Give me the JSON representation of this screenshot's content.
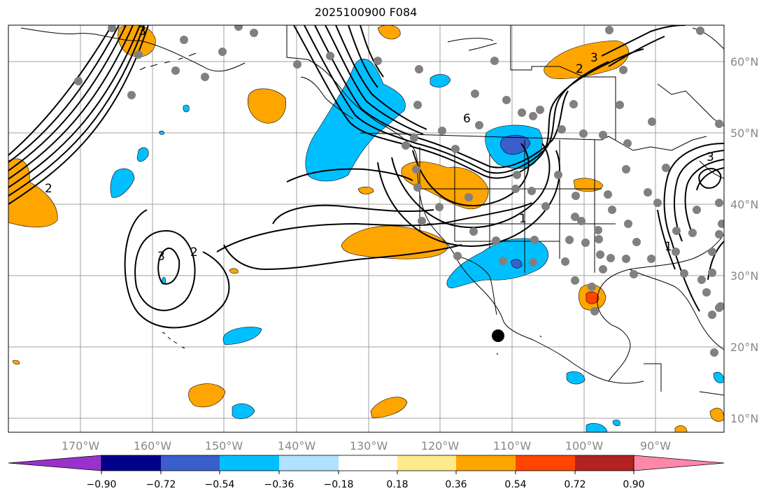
{
  "title": "2025100900 F084",
  "lon_labels": [
    "170°W",
    "160°W",
    "150°W",
    "140°W",
    "130°W",
    "120°W",
    "110°W",
    "100°W",
    "90°W"
  ],
  "lat_labels": [
    "60°N",
    "50°N",
    "40°N",
    "30°N",
    "20°N",
    "10°N"
  ],
  "colorbar": {
    "colors": [
      "#9932cc",
      "#00008b",
      "#3a5fcd",
      "#00bfff",
      "#b0e2ff",
      "#ffffff",
      "#ffeb8b",
      "#ffa500",
      "#ff4500",
      "#b22222",
      "#ff88aa"
    ],
    "ticks": [
      "−0.90",
      "−0.72",
      "−0.54",
      "−0.36",
      "−0.18",
      "0.18",
      "0.36",
      "0.54",
      "0.72",
      "0.90"
    ]
  },
  "contour_labels": [
    "3",
    "2",
    "3",
    "2",
    "2",
    "1",
    "6",
    "3",
    "1",
    "3"
  ],
  "colors": {
    "positive": "#ffa500",
    "strong_positive": "#ff4500",
    "negative": "#00bfff",
    "strong_negative": "#3a5fcd",
    "station": "#808080"
  }
}
